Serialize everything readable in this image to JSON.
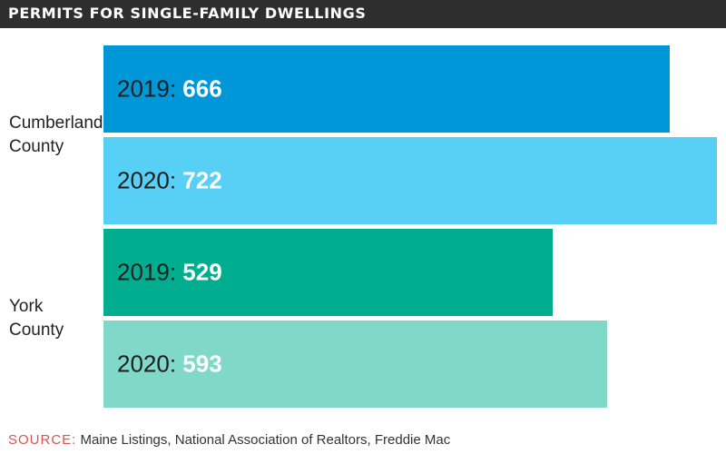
{
  "header": {
    "title": "PERMITS FOR SINGLE-FAMILY DWELLINGS"
  },
  "chart_data": {
    "type": "bar",
    "orientation": "horizontal",
    "title": "PERMITS FOR SINGLE-FAMILY DWELLINGS",
    "groups": [
      {
        "label_lines": [
          "Cumberland",
          "County"
        ],
        "bars": [
          {
            "year": "2019",
            "value": 666,
            "value_text": "666",
            "color": "#0097d9"
          },
          {
            "year": "2020",
            "value": 722,
            "value_text": "722",
            "color": "#58cff5"
          }
        ]
      },
      {
        "label_lines": [
          "York",
          "County"
        ],
        "bars": [
          {
            "year": "2019",
            "value": 529,
            "value_text": "529",
            "color": "#00ae8f"
          },
          {
            "year": "2020",
            "value": 593,
            "value_text": "593",
            "color": "#80d8c8"
          }
        ]
      }
    ],
    "xlim": [
      0,
      722
    ]
  },
  "source": {
    "label": "SOURCE:",
    "text": "Maine Listings, National Association of Realtors, Freddie Mac"
  }
}
